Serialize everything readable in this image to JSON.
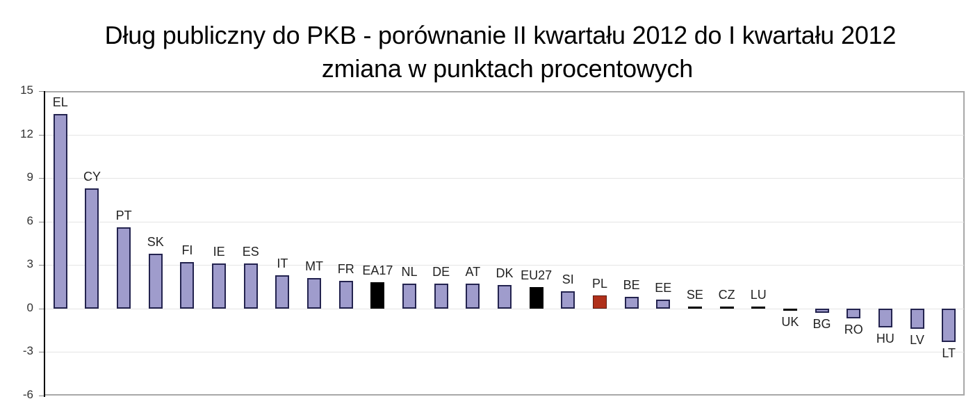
{
  "title": {
    "line1": "Dług publiczny do PKB - porównanie II kwartału 2012 do I kwartału 2012",
    "line2": "zmiana w punktach procentowych"
  },
  "colors": {
    "default_bar": "#9f9ccc",
    "default_border": "#23234f",
    "aggregate_bar": "#000000",
    "highlight_bar": "#b0301a",
    "gridline": "#e4e4e4"
  },
  "chart_data": {
    "type": "bar",
    "title": "Dług publiczny do PKB - porównanie II kwartału 2012 do I kwartału 2012 zmiana w punktach procentowych",
    "xlabel": "",
    "ylabel": "",
    "ylim": [
      -6,
      15
    ],
    "yticks": [
      15,
      12,
      9,
      6,
      3,
      0,
      -3,
      -6
    ],
    "grid": true,
    "legend": null,
    "categories": [
      "EL",
      "CY",
      "PT",
      "SK",
      "FI",
      "IE",
      "ES",
      "IT",
      "MT",
      "FR",
      "EA17",
      "NL",
      "DE",
      "AT",
      "DK",
      "EU27",
      "SI",
      "PL",
      "BE",
      "EE",
      "SE",
      "CZ",
      "LU",
      "UK",
      "BG",
      "RO",
      "HU",
      "LV",
      "LT"
    ],
    "values": [
      13.4,
      8.3,
      5.6,
      3.8,
      3.2,
      3.1,
      3.1,
      2.3,
      2.1,
      1.9,
      1.8,
      1.7,
      1.7,
      1.7,
      1.6,
      1.5,
      1.2,
      0.9,
      0.8,
      0.6,
      0.1,
      0.1,
      0.05,
      -0.1,
      -0.3,
      -0.7,
      -1.3,
      -1.4,
      -2.3
    ],
    "bar_colors": [
      "purple",
      "purple",
      "purple",
      "purple",
      "purple",
      "purple",
      "purple",
      "purple",
      "purple",
      "purple",
      "black",
      "purple",
      "purple",
      "purple",
      "purple",
      "black",
      "purple",
      "red",
      "purple",
      "purple",
      "black",
      "black",
      "black",
      "black",
      "purple",
      "purple",
      "purple",
      "purple",
      "purple"
    ]
  }
}
